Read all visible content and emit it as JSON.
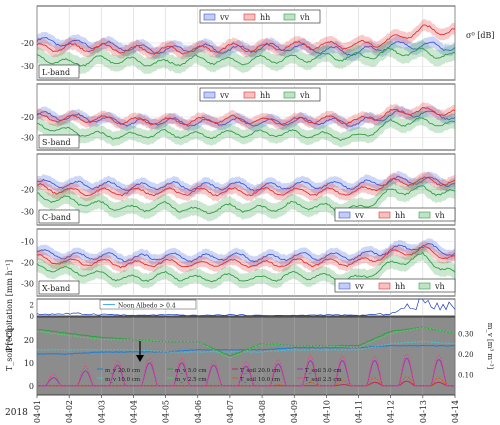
{
  "figure": {
    "year_label": "2018",
    "side_label": "σ⁰ [dB]"
  },
  "chart_data": [
    {
      "type": "line",
      "panel_label": "L-band",
      "legend": [
        "vv",
        "hh",
        "vh"
      ],
      "legend_position": "top-center",
      "ylabel": "",
      "yticks": [
        -20,
        -30
      ],
      "ylim": [
        -36,
        -4
      ],
      "x": [
        "04-01",
        "04-02",
        "04-03",
        "04-04",
        "04-05",
        "04-06",
        "04-07",
        "04-08",
        "04-09",
        "04-10",
        "04-11",
        "04-12",
        "04-13",
        "04-14"
      ],
      "series": [
        {
          "name": "vv",
          "values": [
            -19,
            -20,
            -21,
            -22,
            -23,
            -22,
            -23,
            -22,
            -22,
            -23,
            -24,
            -21,
            -21,
            -22
          ]
        },
        {
          "name": "hh",
          "values": [
            -22,
            -22,
            -22,
            -23,
            -23,
            -23,
            -22,
            -22,
            -21,
            -21,
            -21,
            -19,
            -14,
            -15
          ]
        },
        {
          "name": "vh",
          "values": [
            -26,
            -29,
            -27,
            -28,
            -29,
            -27,
            -28,
            -27,
            -27,
            -26,
            -26,
            -24,
            -24,
            -26
          ]
        }
      ]
    },
    {
      "type": "line",
      "panel_label": "S-band",
      "legend": [
        "vv",
        "hh",
        "vh"
      ],
      "legend_position": "top-center",
      "ylabel": "",
      "yticks": [
        -20,
        -30
      ],
      "ylim": [
        -36,
        -4
      ],
      "x": [
        "04-01",
        "04-02",
        "04-03",
        "04-04",
        "04-05",
        "04-06",
        "04-07",
        "04-08",
        "04-09",
        "04-10",
        "04-11",
        "04-12",
        "04-13",
        "04-14"
      ],
      "series": [
        {
          "name": "vv",
          "values": [
            -19,
            -20,
            -21,
            -23,
            -22,
            -23,
            -22,
            -23,
            -22,
            -22,
            -23,
            -19,
            -18,
            -20
          ]
        },
        {
          "name": "hh",
          "values": [
            -20,
            -21,
            -21,
            -22,
            -22,
            -22,
            -21,
            -22,
            -22,
            -21,
            -22,
            -18,
            -17,
            -18
          ]
        },
        {
          "name": "vh",
          "values": [
            -24,
            -27,
            -29,
            -29,
            -28,
            -29,
            -28,
            -28,
            -28,
            -29,
            -30,
            -23,
            -22,
            -24
          ]
        }
      ]
    },
    {
      "type": "line",
      "panel_label": "C-band",
      "legend": [
        "vv",
        "hh",
        "vh"
      ],
      "legend_position": "bottom-right",
      "ylabel": "",
      "yticks": [
        -20,
        -30
      ],
      "ylim": [
        -36,
        -4
      ],
      "x": [
        "04-01",
        "04-02",
        "04-03",
        "04-04",
        "04-05",
        "04-06",
        "04-07",
        "04-08",
        "04-09",
        "04-10",
        "04-11",
        "04-12",
        "04-13",
        "04-14"
      ],
      "series": [
        {
          "name": "vv",
          "values": [
            -17,
            -18,
            -18,
            -19,
            -18,
            -19,
            -18,
            -19,
            -18,
            -18,
            -18,
            -16,
            -16,
            -17
          ]
        },
        {
          "name": "hh",
          "values": [
            -19,
            -21,
            -21,
            -21,
            -21,
            -21,
            -21,
            -21,
            -21,
            -21,
            -21,
            -17,
            -16,
            -17
          ]
        },
        {
          "name": "vh",
          "values": [
            -23,
            -25,
            -27,
            -29,
            -27,
            -30,
            -28,
            -29,
            -27,
            -28,
            -29,
            -21,
            -20,
            -22
          ]
        }
      ]
    },
    {
      "type": "line",
      "panel_label": "X-band",
      "legend": [
        "vv",
        "hh",
        "vh"
      ],
      "legend_position": "bottom-right",
      "ylabel": "",
      "yticks": [
        -10,
        -20,
        -30
      ],
      "ylim": [
        -36,
        -4
      ],
      "x": [
        "04-01",
        "04-02",
        "04-03",
        "04-04",
        "04-05",
        "04-06",
        "04-07",
        "04-08",
        "04-09",
        "04-10",
        "04-11",
        "04-12",
        "04-13",
        "04-14"
      ],
      "series": [
        {
          "name": "vv",
          "values": [
            -15,
            -17,
            -17,
            -18,
            -17,
            -18,
            -17,
            -18,
            -17,
            -17,
            -17,
            -14,
            -12,
            -16
          ]
        },
        {
          "name": "hh",
          "values": [
            -18,
            -20,
            -20,
            -21,
            -20,
            -21,
            -20,
            -21,
            -20,
            -20,
            -20,
            -16,
            -14,
            -18
          ]
        },
        {
          "name": "vh",
          "values": [
            -22,
            -24,
            -26,
            -28,
            -26,
            -28,
            -27,
            -28,
            -26,
            -27,
            -28,
            -21,
            -17,
            -26
          ]
        }
      ]
    },
    {
      "type": "bar",
      "ylabel": "Precipitation [mm h⁻¹]",
      "yticks": [
        0,
        2
      ],
      "ylim": [
        0,
        3
      ],
      "annotation": "Noon Albedo > 0.4",
      "x": [
        "04-01",
        "04-02",
        "04-03",
        "04-04",
        "04-05",
        "04-06",
        "04-07",
        "04-08",
        "04-09",
        "04-10",
        "04-11",
        "04-12",
        "04-13",
        "04-14"
      ],
      "values": [
        0.3,
        0.4,
        0.3,
        0.1,
        0.2,
        0.1,
        0.2,
        0.1,
        0.1,
        0.2,
        0.1,
        0.4,
        2.5,
        1.6
      ]
    },
    {
      "type": "line",
      "ylabel": "T_soil [°C]",
      "y2label": "m_v [m³ m⁻³]",
      "yticks": [
        0,
        10,
        20
      ],
      "y2ticks": [
        0.1,
        0.2,
        0.3
      ],
      "ylim": [
        -4,
        30
      ],
      "xlabel": "",
      "x": [
        "04-01",
        "04-02",
        "04-03",
        "04-04",
        "04-05",
        "04-06",
        "04-07",
        "04-08",
        "04-09",
        "04-10",
        "04-11",
        "04-12",
        "04-13",
        "04-14"
      ],
      "series": [
        {
          "name": "m_v 20.0 cm",
          "axis": "right",
          "values": [
            0.2,
            0.2,
            0.21,
            0.21,
            0.21,
            0.22,
            0.22,
            0.22,
            0.23,
            0.23,
            0.23,
            0.24,
            0.24,
            0.24
          ]
        },
        {
          "name": "m_v 10.0 cm",
          "axis": "right",
          "values": [
            0.22,
            0.22,
            0.22,
            0.22,
            0.21,
            0.21,
            0.21,
            0.21,
            0.22,
            0.22,
            0.22,
            0.25,
            0.26,
            0.25
          ]
        },
        {
          "name": "m_v 5.0 cm",
          "axis": "right",
          "values": [
            0.32,
            0.3,
            0.28,
            0.27,
            0.26,
            0.26,
            0.19,
            0.25,
            0.24,
            0.24,
            0.24,
            0.31,
            0.33,
            0.3
          ]
        },
        {
          "name": "m_v 2.5 cm",
          "axis": "right",
          "values": [
            0.31,
            0.29,
            0.27,
            0.27,
            0.26,
            0.26,
            0.18,
            0.25,
            0.24,
            0.24,
            0.23,
            0.3,
            0.33,
            0.3
          ]
        },
        {
          "name": "T_soil 20.0 cm",
          "axis": "left",
          "peaks": [
            0,
            0,
            0,
            0,
            0,
            0,
            0,
            0,
            0,
            0,
            1,
            2,
            2,
            1
          ]
        },
        {
          "name": "T_soil 10.0 cm",
          "axis": "left",
          "peaks": [
            0,
            0,
            0,
            0,
            0,
            0,
            0,
            0,
            1,
            2,
            3,
            4,
            4,
            3
          ]
        },
        {
          "name": "T_soil 5.0 cm",
          "axis": "left",
          "peaks": [
            2,
            5,
            8,
            10,
            10,
            10,
            8,
            9,
            10,
            12,
            10,
            12,
            12,
            11
          ]
        },
        {
          "name": "T_soil 2.5 cm",
          "axis": "left",
          "peaks": [
            3,
            7,
            10,
            12,
            12,
            12,
            10,
            11,
            12,
            14,
            12,
            14,
            14,
            13
          ]
        }
      ],
      "legend_labels": [
        "m_v 20.0 cm",
        "m_v 5.0 cm",
        "T_soil 20.0 cm",
        "T_soil 5.0 cm",
        "m_v 10.0 cm",
        "m_v 2.5 cm",
        "T_soil 10.0 cm",
        "T_soil 2.5 cm"
      ]
    }
  ],
  "colors": {
    "vv": "#3b5bdb",
    "hh": "#e03131",
    "vh": "#2f9e44",
    "mv20": "#1c7ed6",
    "mv10": "#3bc9db",
    "mv5": "#2f9e44",
    "mv25": "#51cf66",
    "t20": "#c2255c",
    "t10": "#e8590c",
    "t5": "#9c36b5",
    "t25": "#e64980",
    "soil_bg": "#8c8c8c"
  }
}
